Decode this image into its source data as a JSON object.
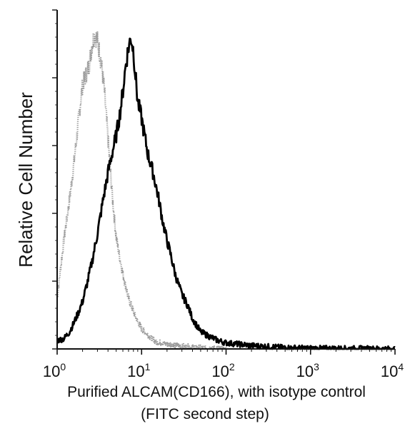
{
  "chart_data": {
    "type": "line",
    "title": "",
    "xlabel": "Purified ALCAM(CD166), with isotype control",
    "xlabel_line2": "(FITC second step)",
    "ylabel": "Relative Cell Number",
    "x_scale": "log",
    "xlim": [
      1,
      10000
    ],
    "ylim": [
      0,
      100
    ],
    "x_ticks": [
      {
        "value": 1,
        "base": "10",
        "exp": "0"
      },
      {
        "value": 10,
        "base": "10",
        "exp": "1"
      },
      {
        "value": 100,
        "base": "10",
        "exp": "2"
      },
      {
        "value": 1000,
        "base": "10",
        "exp": "3"
      },
      {
        "value": 10000,
        "base": "10",
        "exp": "4"
      }
    ],
    "y_major_ticks": [
      0,
      20,
      40,
      60,
      80,
      100
    ],
    "grid": false,
    "series": [
      {
        "color": "#9a9a9a",
        "style": "isotype-dotted",
        "x": [
          1.0,
          1.2,
          1.4,
          1.6,
          1.8,
          2.0,
          2.2,
          2.4,
          2.6,
          2.8,
          3.0,
          3.3,
          3.6,
          4.0,
          4.5,
          5.0,
          5.5,
          6.0,
          7.0,
          8.0,
          9.0,
          10.0,
          12.0,
          15.0,
          20.0,
          30.0,
          50.0,
          100.0
        ],
        "y": [
          15,
          32,
          44,
          56,
          68,
          78,
          81,
          84,
          90,
          93,
          91,
          85,
          77,
          62,
          45,
          33,
          27,
          22,
          15,
          11,
          8,
          6,
          4,
          2,
          1.5,
          0.8,
          0.3,
          0
        ]
      },
      {
        "color": "#000000",
        "style": "sample-solid",
        "x": [
          1.0,
          1.2,
          1.4,
          1.6,
          1.8,
          2.0,
          2.3,
          2.6,
          3.0,
          3.5,
          4.0,
          4.5,
          5.0,
          5.5,
          6.0,
          6.5,
          7.0,
          7.5,
          8.0,
          8.5,
          9.0,
          10.0,
          11.0,
          12.0,
          13.0,
          14.0,
          16.0,
          18.0,
          20.0,
          22.0,
          25.0,
          30.0,
          35.0,
          40.0,
          50.0,
          60.0,
          80.0,
          100.0,
          200.0,
          500.0,
          1000.0,
          5000.0,
          10000.0
        ],
        "y": [
          2.5,
          3,
          5,
          8,
          11,
          14,
          20,
          26,
          34,
          44,
          52,
          58,
          63,
          69,
          76,
          84,
          89,
          92,
          88,
          80,
          73,
          68,
          62,
          57,
          54,
          51,
          44,
          37,
          32,
          28,
          22,
          16,
          13,
          9,
          5,
          4,
          2.5,
          1.8,
          1,
          0.4,
          0.2,
          0.1,
          0
        ]
      }
    ]
  }
}
